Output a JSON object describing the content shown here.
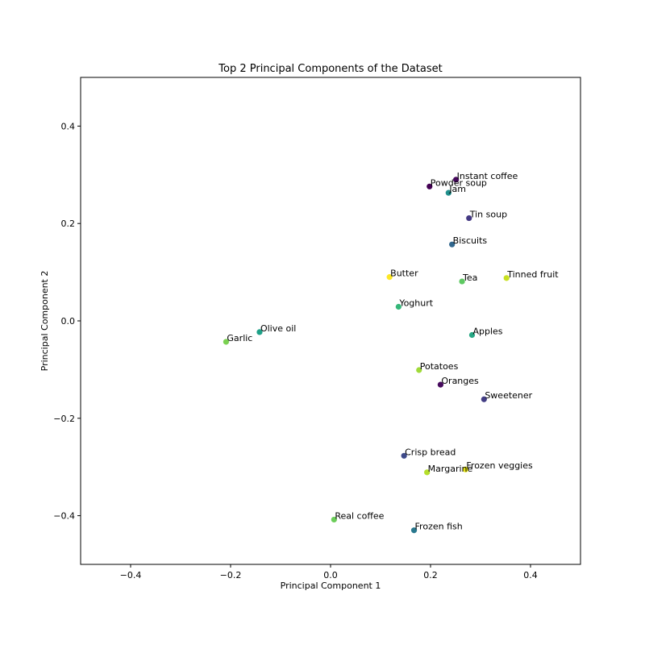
{
  "chart_data": {
    "type": "scatter",
    "title": "Top 2 Principal Components of the Dataset",
    "xlabel": "Principal Component 1",
    "ylabel": "Principal Component 2",
    "xlim": [
      -0.5,
      0.5
    ],
    "ylim": [
      -0.5,
      0.5
    ],
    "xticks": [
      -0.4,
      -0.2,
      0.0,
      0.2,
      0.4
    ],
    "yticks": [
      -0.4,
      -0.2,
      0.0,
      0.2,
      0.4
    ],
    "xtick_labels": [
      "−0.4",
      "−0.2",
      "0.0",
      "0.2",
      "0.4"
    ],
    "ytick_labels": [
      "−0.4",
      "−0.2",
      "0.0",
      "0.2",
      "0.4"
    ],
    "grid": false,
    "colormap": "viridis",
    "points": [
      {
        "label": "Instant coffee",
        "x": 0.251,
        "y": 0.29,
        "color": "#46085c"
      },
      {
        "label": "Powder soup",
        "x": 0.198,
        "y": 0.276,
        "color": "#440154"
      },
      {
        "label": "Jam",
        "x": 0.236,
        "y": 0.263,
        "color": "#21908d"
      },
      {
        "label": "Tin soup",
        "x": 0.277,
        "y": 0.211,
        "color": "#443983"
      },
      {
        "label": "Biscuits",
        "x": 0.243,
        "y": 0.157,
        "color": "#31678e"
      },
      {
        "label": "Butter",
        "x": 0.118,
        "y": 0.09,
        "color": "#fde725"
      },
      {
        "label": "Tea",
        "x": 0.263,
        "y": 0.081,
        "color": "#5ec962"
      },
      {
        "label": "Tinned fruit",
        "x": 0.352,
        "y": 0.088,
        "color": "#c8e020"
      },
      {
        "label": "Yoghurt",
        "x": 0.136,
        "y": 0.029,
        "color": "#35b779"
      },
      {
        "label": "Olive oil",
        "x": -0.142,
        "y": -0.023,
        "color": "#1fa188"
      },
      {
        "label": "Garlic",
        "x": -0.209,
        "y": -0.043,
        "color": "#7ad151"
      },
      {
        "label": "Apples",
        "x": 0.283,
        "y": -0.029,
        "color": "#26a784"
      },
      {
        "label": "Potatoes",
        "x": 0.177,
        "y": -0.101,
        "color": "#a0da39"
      },
      {
        "label": "Oranges",
        "x": 0.22,
        "y": -0.131,
        "color": "#460a5d"
      },
      {
        "label": "Sweetener",
        "x": 0.307,
        "y": -0.161,
        "color": "#433e85"
      },
      {
        "label": "Crisp bread",
        "x": 0.147,
        "y": -0.277,
        "color": "#3e4a89"
      },
      {
        "label": "Frozen veggies",
        "x": 0.27,
        "y": -0.305,
        "color": "#e5e419"
      },
      {
        "label": "Margarine",
        "x": 0.193,
        "y": -0.311,
        "color": "#b5de2b"
      },
      {
        "label": "Real coffee",
        "x": 0.007,
        "y": -0.408,
        "color": "#6ccd5a"
      },
      {
        "label": "Frozen fish",
        "x": 0.167,
        "y": -0.43,
        "color": "#29788e"
      }
    ]
  }
}
